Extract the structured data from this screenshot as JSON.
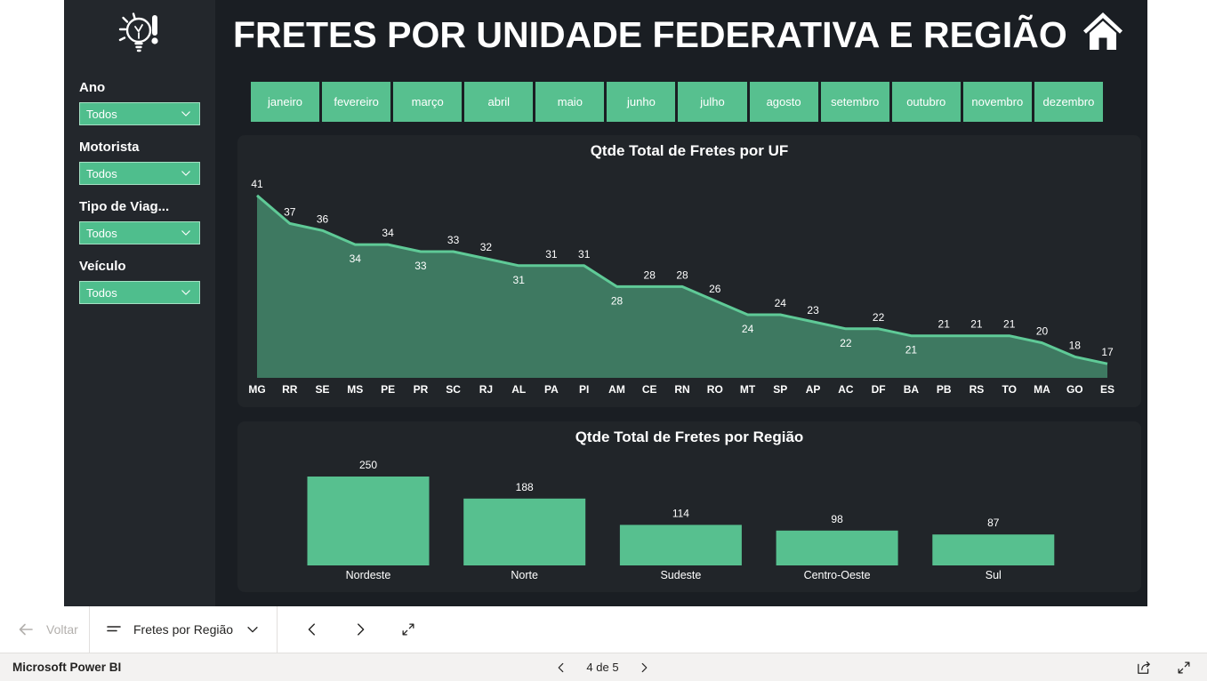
{
  "header": {
    "title": "FRETES POR UNIDADE FEDERATIVA E REGIÃO"
  },
  "sidebar": {
    "filters": [
      {
        "label": "Ano",
        "value": "Todos"
      },
      {
        "label": "Motorista",
        "value": "Todos"
      },
      {
        "label": "Tipo de Viag...",
        "value": "Todos"
      },
      {
        "label": "Veículo",
        "value": "Todos"
      }
    ]
  },
  "months": [
    "janeiro",
    "fevereiro",
    "março",
    "abril",
    "maio",
    "junho",
    "julho",
    "agosto",
    "setembro",
    "outubro",
    "novembro",
    "dezembro"
  ],
  "chart_data": [
    {
      "type": "area",
      "title": "Qtde Total de Fretes por UF",
      "categories": [
        "MG",
        "RR",
        "SE",
        "MS",
        "PE",
        "PR",
        "SC",
        "RJ",
        "AL",
        "PA",
        "PI",
        "AM",
        "CE",
        "RN",
        "RO",
        "MT",
        "SP",
        "AP",
        "AC",
        "DF",
        "BA",
        "PB",
        "RS",
        "TO",
        "MA",
        "GO",
        "ES"
      ],
      "values": [
        41,
        37,
        36,
        34,
        34,
        33,
        33,
        32,
        31,
        31,
        31,
        28,
        28,
        28,
        26,
        24,
        24,
        23,
        22,
        22,
        21,
        21,
        21,
        21,
        20,
        18,
        17
      ],
      "labels_below": [
        "MS",
        "PR",
        "AL",
        "AM",
        "MT",
        "AC",
        "BA"
      ],
      "ylim": [
        15,
        43
      ],
      "data_labels": true,
      "grid": false,
      "xlabel": "",
      "ylabel": ""
    },
    {
      "type": "bar",
      "title": "Qtde Total de Fretes por Região",
      "categories": [
        "Nordeste",
        "Norte",
        "Sudeste",
        "Centro-Oeste",
        "Sul"
      ],
      "values": [
        250,
        188,
        114,
        98,
        87
      ],
      "ylim": [
        0,
        280
      ],
      "data_labels": true,
      "grid": false,
      "xlabel": "",
      "ylabel": ""
    }
  ],
  "navbar": {
    "back_label": "Voltar",
    "page_selector": "Fretes por Região"
  },
  "statusbar": {
    "brand": "Microsoft Power BI",
    "pagination": "4 de 5"
  },
  "icons": {
    "sidebar_logo": "idea-lightbulb-icon",
    "header_home": "home-icon",
    "nav_collapse": "fit-to-page-icon",
    "status_share": "share-icon"
  },
  "colors": {
    "accent_green": "#57c08f",
    "line_green": "#5fca97",
    "dropdown_green": "#4fbe8d",
    "panel_bg": "#212529",
    "page_bg": "#1a1e23",
    "sidebar_bg": "#23272c",
    "text_light": "#ffffff",
    "navbar_bg": "#ffffff",
    "statusbar_bg": "#f3f2f1"
  }
}
